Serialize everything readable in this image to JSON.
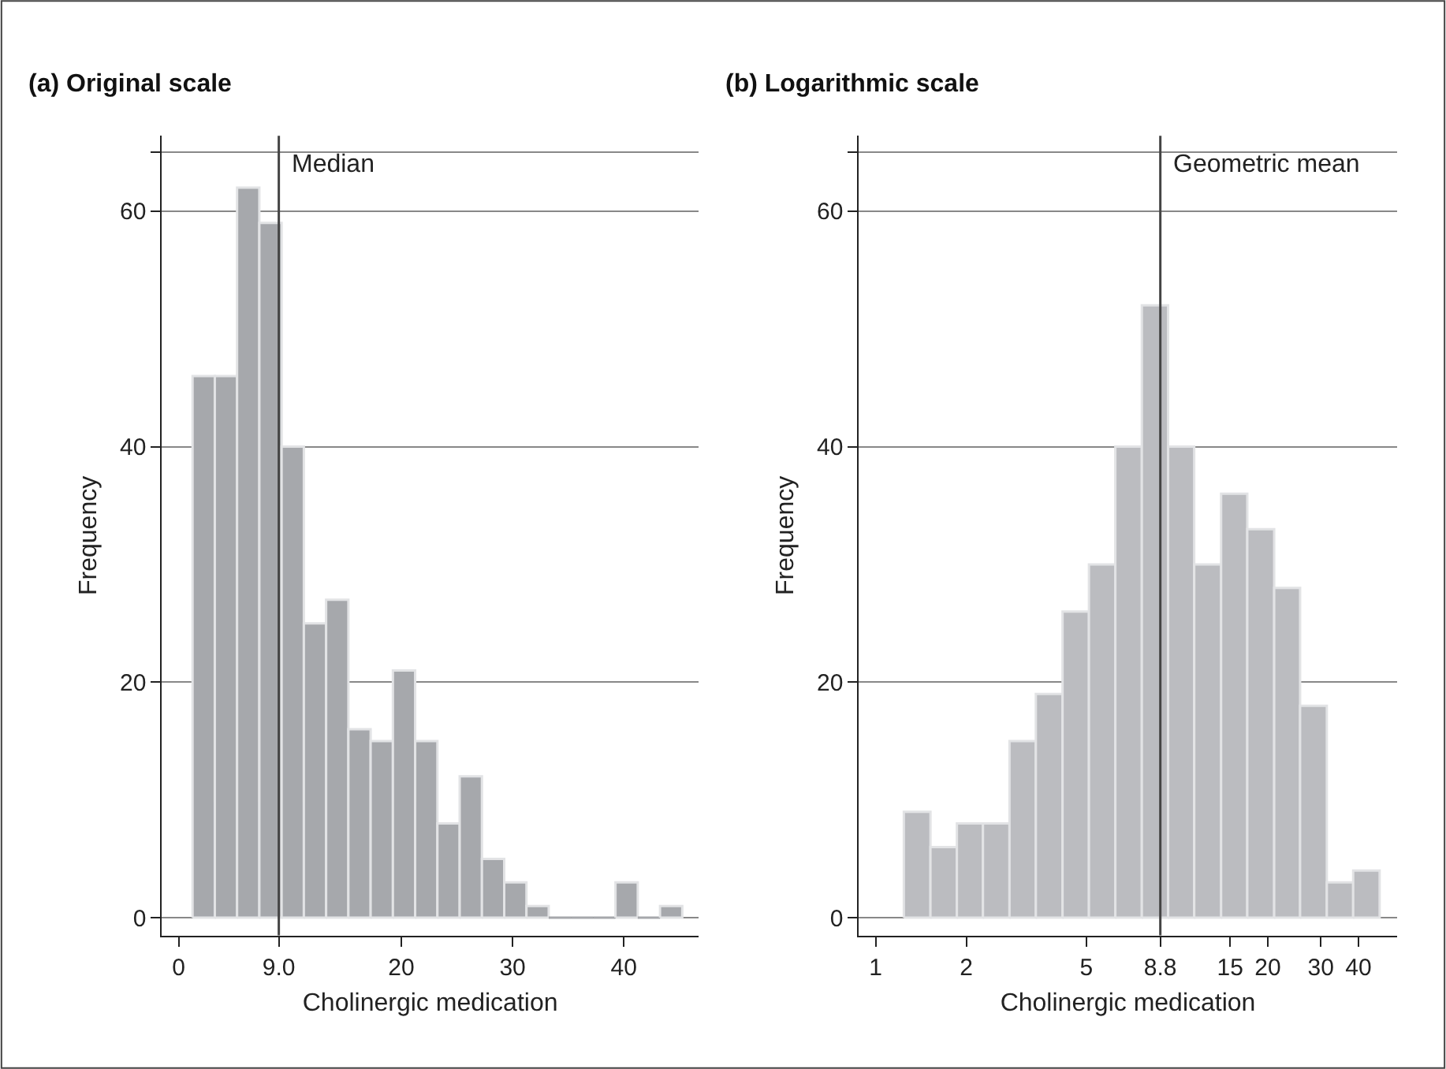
{
  "chart_data": [
    {
      "type": "histogram",
      "title": "(a) Original scale",
      "xlabel": "Cholinergic medication",
      "ylabel": "Frequency",
      "bins": [
        1.25,
        3.25,
        5.25,
        7.25,
        9.25,
        11.25,
        13.25,
        15.25,
        17.25,
        19.25,
        21.25,
        23.25,
        25.25,
        27.25,
        29.25,
        31.25,
        33.25,
        35.25,
        37.25,
        39.25,
        41.25,
        43.25,
        45.25
      ],
      "values": [
        46,
        46,
        62,
        59,
        40,
        25,
        27,
        16,
        15,
        21,
        15,
        8,
        12,
        5,
        3,
        1,
        0,
        0,
        0,
        3,
        0,
        1
      ],
      "color": "#a6a8ac",
      "xlim": [
        -1.5,
        46.7
      ],
      "ylim": [
        -1.5,
        66.4
      ],
      "xticks": [
        0,
        {
          "value": 9,
          "label": "9.0"
        },
        20,
        30,
        40
      ],
      "yticks": [
        0,
        20,
        40,
        60,
        {
          "value": 65,
          "label": null
        }
      ],
      "grid": "y",
      "ref_lines": [
        {
          "axis": "x",
          "value": 9,
          "label": "Median",
          "color": "#444444"
        }
      ]
    },
    {
      "type": "histogram",
      "title": "(b) Logarithmic scale",
      "xlabel": "Cholinergic medication",
      "ylabel": "Frequency",
      "bins": [
        1.24,
        1.52,
        1.86,
        2.27,
        2.78,
        3.4,
        4.17,
        5.1,
        6.24,
        7.64,
        9.34,
        11.4,
        14.0,
        17.1,
        21.0,
        25.6,
        31.4,
        38.4,
        47.0
      ],
      "values": [
        9,
        6,
        8,
        8,
        15,
        19,
        26,
        30,
        40,
        52,
        40,
        30,
        36,
        33,
        28,
        18,
        3,
        4
      ],
      "color": "#bbbcc0",
      "log": "x",
      "xlim": [
        0.88,
        53.6
      ],
      "ylim": [
        -1.5,
        66.4
      ],
      "xticks": [
        1,
        2,
        5,
        8.8,
        15,
        20,
        30,
        40
      ],
      "yticks": [
        0,
        20,
        40,
        60,
        {
          "value": 65,
          "label": null
        }
      ],
      "grid": "y",
      "ref_lines": [
        {
          "axis": "x",
          "value": 8.8,
          "label": "Geometric mean",
          "color": "#444444"
        }
      ]
    }
  ]
}
